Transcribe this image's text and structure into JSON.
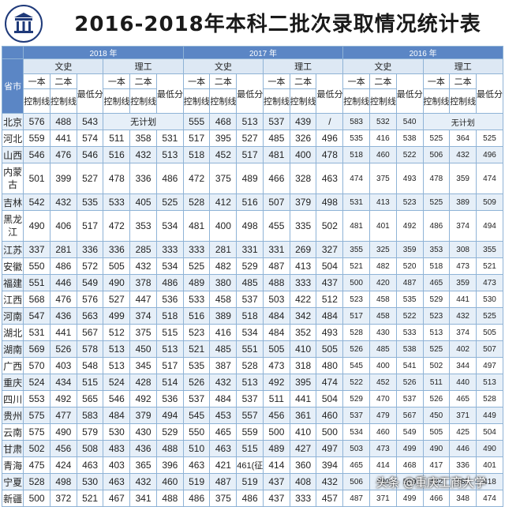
{
  "title": "2016-2018年本科二批次录取情况统计表",
  "watermark": "头条 @重庆工商大学",
  "headers": {
    "province": "省市",
    "years": [
      "2018 年",
      "2017 年",
      "2016 年"
    ],
    "categories": [
      "文史",
      "理工"
    ],
    "yiben": "一本",
    "erben": "二本",
    "control_line": "控制线",
    "min_score": "最低分"
  },
  "rows": [
    {
      "province": "北京",
      "wen2018": [
        "576",
        "488",
        "543"
      ],
      "li2018_merged": "无计划",
      "wen2017": [
        "555",
        "468",
        "513"
      ],
      "li2017": [
        "537",
        "439",
        "/"
      ],
      "wen2016": [
        "583",
        "532",
        "540"
      ],
      "li2016_merged": "无计划"
    },
    {
      "province": "河北",
      "cells": [
        "559",
        "441",
        "574",
        "511",
        "358",
        "531",
        "517",
        "395",
        "527",
        "485",
        "326",
        "496",
        "535",
        "416",
        "538",
        "525",
        "364",
        "525"
      ]
    },
    {
      "province": "山西",
      "cells": [
        "546",
        "476",
        "546",
        "516",
        "432",
        "513",
        "518",
        "452",
        "517",
        "481",
        "400",
        "478",
        "518",
        "460",
        "522",
        "506",
        "432",
        "496"
      ]
    },
    {
      "province": "内蒙古",
      "cells": [
        "501",
        "399",
        "527",
        "478",
        "336",
        "486",
        "472",
        "375",
        "489",
        "466",
        "328",
        "463",
        "474",
        "375",
        "493",
        "478",
        "359",
        "474"
      ]
    },
    {
      "province": "吉林",
      "cells": [
        "542",
        "432",
        "535",
        "533",
        "405",
        "525",
        "528",
        "412",
        "516",
        "507",
        "379",
        "498",
        "531",
        "413",
        "523",
        "525",
        "389",
        "509"
      ]
    },
    {
      "province": "黑龙江",
      "cells": [
        "490",
        "406",
        "517",
        "472",
        "353",
        "534",
        "481",
        "400",
        "498",
        "455",
        "335",
        "502",
        "481",
        "401",
        "492",
        "486",
        "374",
        "494"
      ]
    },
    {
      "province": "江苏",
      "cells": [
        "337",
        "281",
        "336",
        "336",
        "285",
        "333",
        "333",
        "281",
        "331",
        "331",
        "269",
        "327",
        "355",
        "325",
        "359",
        "353",
        "308",
        "355"
      ]
    },
    {
      "province": "安徽",
      "cells": [
        "550",
        "486",
        "572",
        "505",
        "432",
        "534",
        "525",
        "482",
        "529",
        "487",
        "413",
        "504",
        "521",
        "482",
        "520",
        "518",
        "473",
        "521"
      ]
    },
    {
      "province": "福建",
      "cells": [
        "551",
        "446",
        "549",
        "490",
        "378",
        "486",
        "489",
        "380",
        "485",
        "488",
        "333",
        "437",
        "500",
        "420",
        "487",
        "465",
        "359",
        "473"
      ]
    },
    {
      "province": "江西",
      "cells": [
        "568",
        "476",
        "576",
        "527",
        "447",
        "536",
        "533",
        "458",
        "537",
        "503",
        "422",
        "512",
        "523",
        "458",
        "535",
        "529",
        "441",
        "530"
      ]
    },
    {
      "province": "河南",
      "cells": [
        "547",
        "436",
        "563",
        "499",
        "374",
        "518",
        "516",
        "389",
        "518",
        "484",
        "342",
        "484",
        "517",
        "458",
        "522",
        "523",
        "432",
        "525"
      ]
    },
    {
      "province": "湖北",
      "cells": [
        "531",
        "441",
        "567",
        "512",
        "375",
        "515",
        "523",
        "416",
        "534",
        "484",
        "352",
        "493",
        "528",
        "430",
        "533",
        "513",
        "374",
        "505"
      ]
    },
    {
      "province": "湖南",
      "cells": [
        "569",
        "526",
        "578",
        "513",
        "450",
        "513",
        "521",
        "485",
        "551",
        "505",
        "410",
        "505",
        "526",
        "485",
        "538",
        "525",
        "402",
        "507"
      ]
    },
    {
      "province": "广西",
      "cells": [
        "570",
        "403",
        "548",
        "513",
        "345",
        "517",
        "535",
        "387",
        "528",
        "473",
        "318",
        "480",
        "545",
        "400",
        "541",
        "502",
        "344",
        "497"
      ]
    },
    {
      "province": "重庆",
      "cells": [
        "524",
        "434",
        "515",
        "524",
        "428",
        "514",
        "526",
        "432",
        "513",
        "492",
        "395",
        "474",
        "522",
        "452",
        "526",
        "511",
        "440",
        "513"
      ]
    },
    {
      "province": "四川",
      "cells": [
        "553",
        "492",
        "565",
        "546",
        "492",
        "536",
        "537",
        "484",
        "537",
        "511",
        "441",
        "504",
        "529",
        "470",
        "537",
        "526",
        "465",
        "528"
      ]
    },
    {
      "province": "贵州",
      "cells": [
        "575",
        "477",
        "583",
        "484",
        "379",
        "494",
        "545",
        "453",
        "557",
        "456",
        "361",
        "460",
        "537",
        "479",
        "567",
        "450",
        "371",
        "449"
      ]
    },
    {
      "province": "云南",
      "cells": [
        "575",
        "490",
        "579",
        "530",
        "430",
        "529",
        "550",
        "465",
        "559",
        "500",
        "410",
        "500",
        "534",
        "460",
        "549",
        "505",
        "425",
        "504"
      ]
    },
    {
      "province": "甘肃",
      "cells": [
        "502",
        "456",
        "508",
        "483",
        "436",
        "488",
        "510",
        "463",
        "515",
        "489",
        "427",
        "497",
        "503",
        "473",
        "499",
        "490",
        "446",
        "490"
      ]
    },
    {
      "province": "青海",
      "cells": [
        "475",
        "424",
        "463",
        "403",
        "365",
        "396",
        "463",
        "421",
        "461(征)",
        "414",
        "360",
        "394",
        "465",
        "414",
        "468",
        "417",
        "336",
        "401"
      ]
    },
    {
      "province": "宁夏",
      "cells": [
        "528",
        "498",
        "530",
        "463",
        "432",
        "460",
        "519",
        "487",
        "519",
        "437",
        "408",
        "432",
        "506",
        "480",
        "509",
        "432",
        "385",
        "418"
      ]
    },
    {
      "province": "新疆",
      "cells": [
        "500",
        "372",
        "521",
        "467",
        "341",
        "488",
        "486",
        "375",
        "486",
        "437",
        "333",
        "457",
        "487",
        "371",
        "499",
        "466",
        "348",
        "474"
      ]
    }
  ]
}
